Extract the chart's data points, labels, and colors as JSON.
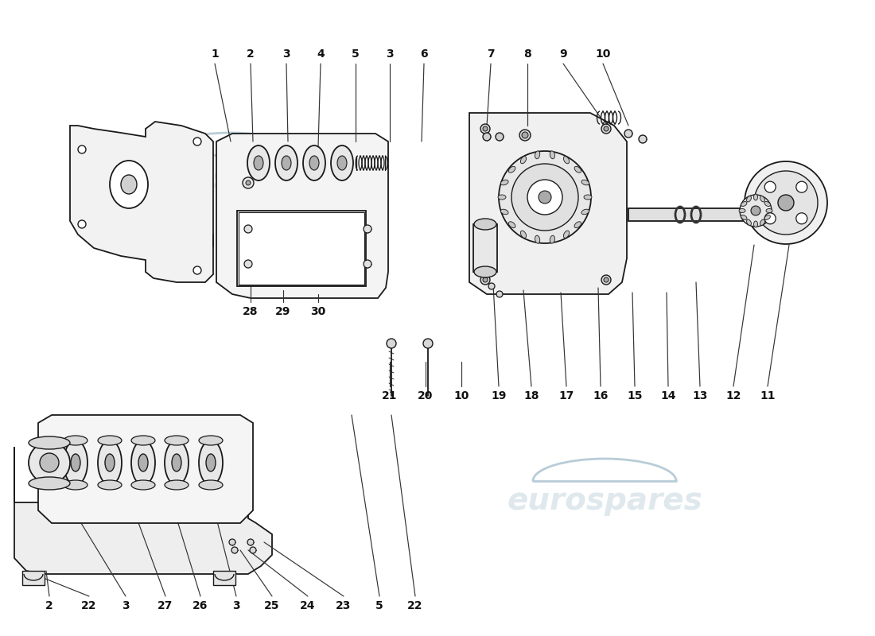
{
  "background_color": "#ffffff",
  "watermark_text": "eurospares",
  "watermark_color": "#b8ccd8",
  "fig_width": 11.0,
  "fig_height": 8.0,
  "dpi": 100,
  "top_labels": [
    [
      "1",
      270,
      68,
      290,
      178
    ],
    [
      "2",
      315,
      68,
      318,
      178
    ],
    [
      "3",
      360,
      68,
      362,
      178
    ],
    [
      "4",
      403,
      68,
      400,
      185
    ],
    [
      "5",
      447,
      68,
      447,
      178
    ],
    [
      "3",
      490,
      68,
      490,
      178
    ],
    [
      "6",
      533,
      68,
      530,
      178
    ],
    [
      "7",
      617,
      68,
      612,
      158
    ],
    [
      "8",
      663,
      68,
      663,
      158
    ],
    [
      "9",
      708,
      68,
      755,
      148
    ],
    [
      "10",
      758,
      68,
      790,
      158
    ]
  ],
  "mid_labels": [
    [
      "28",
      315,
      392,
      315,
      358
    ],
    [
      "29",
      356,
      392,
      356,
      365
    ],
    [
      "30",
      400,
      392,
      400,
      370
    ],
    [
      "21",
      490,
      498,
      490,
      455
    ],
    [
      "20",
      535,
      498,
      535,
      455
    ],
    [
      "10",
      580,
      498,
      580,
      455
    ],
    [
      "19",
      627,
      498,
      620,
      358
    ],
    [
      "18",
      668,
      498,
      658,
      365
    ],
    [
      "17",
      712,
      498,
      705,
      368
    ],
    [
      "16",
      755,
      498,
      752,
      362
    ],
    [
      "15",
      798,
      498,
      795,
      368
    ],
    [
      "14",
      840,
      498,
      838,
      368
    ],
    [
      "13",
      880,
      498,
      875,
      355
    ],
    [
      "12",
      922,
      498,
      948,
      308
    ],
    [
      "11",
      965,
      498,
      992,
      308
    ]
  ],
  "bot_labels": [
    [
      "2",
      62,
      762,
      58,
      718
    ],
    [
      "22",
      112,
      762,
      32,
      718
    ],
    [
      "3",
      158,
      762,
      102,
      658
    ],
    [
      "27",
      208,
      762,
      172,
      652
    ],
    [
      "26",
      252,
      762,
      222,
      652
    ],
    [
      "3",
      297,
      762,
      272,
      652
    ],
    [
      "25",
      342,
      762,
      302,
      692
    ],
    [
      "24",
      387,
      762,
      312,
      692
    ],
    [
      "23",
      432,
      762,
      332,
      682
    ],
    [
      "5",
      477,
      762,
      442,
      522
    ],
    [
      "22",
      522,
      762,
      492,
      522
    ]
  ]
}
